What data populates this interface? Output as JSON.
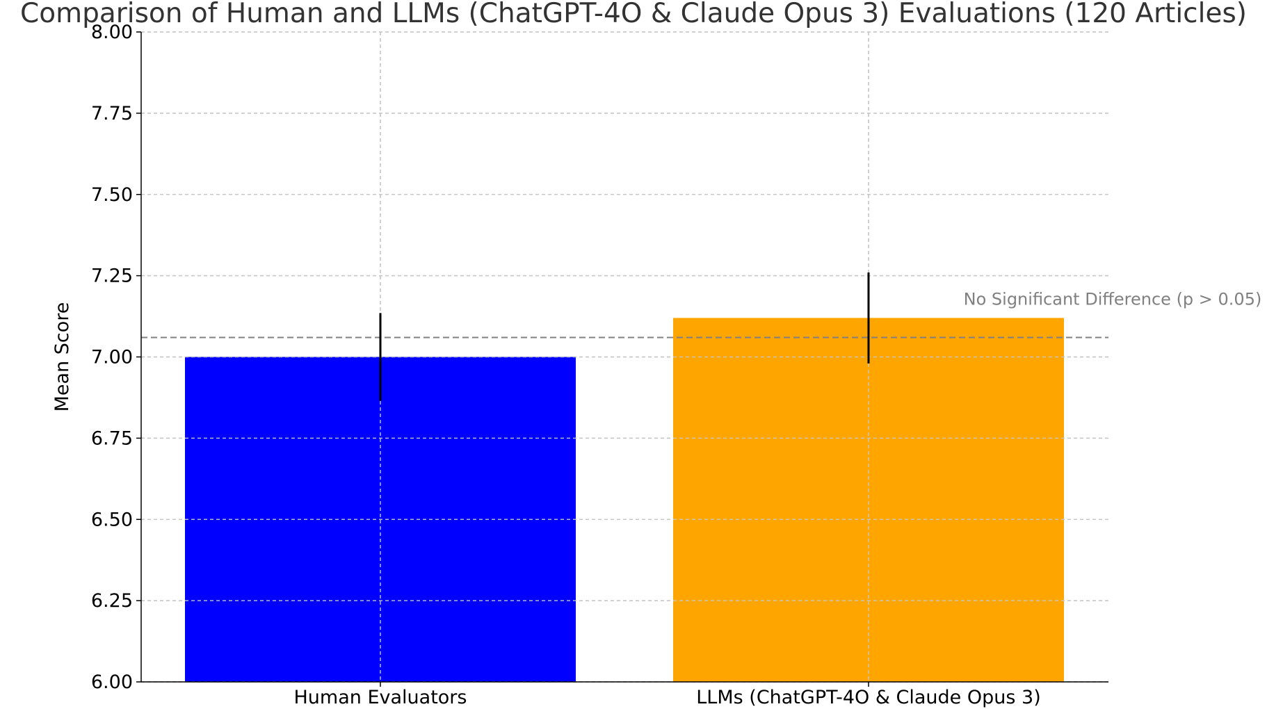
{
  "chart_data": {
    "type": "bar",
    "title": "Comparison of Human and LLMs (ChatGPT-4O & Claude Opus 3) Evaluations (120 Articles)",
    "xlabel": "",
    "ylabel": "Mean Score",
    "categories": [
      "Human Evaluators",
      "LLMs (ChatGPT-4O & Claude Opus 3)"
    ],
    "values": [
      7.0,
      7.12
    ],
    "error": [
      0.135,
      0.14
    ],
    "bar_colors": [
      "#0000ff",
      "#ffa500"
    ],
    "ylim": [
      6.0,
      8.0
    ],
    "yticks": [
      "6.00",
      "6.25",
      "6.50",
      "6.75",
      "7.00",
      "7.25",
      "7.50",
      "7.75",
      "8.00"
    ],
    "reference_line": {
      "value": 7.06,
      "label": "No Significant Difference (p > 0.05)",
      "color": "#808080",
      "style": "dashed"
    },
    "grid": true,
    "legend": "none"
  }
}
